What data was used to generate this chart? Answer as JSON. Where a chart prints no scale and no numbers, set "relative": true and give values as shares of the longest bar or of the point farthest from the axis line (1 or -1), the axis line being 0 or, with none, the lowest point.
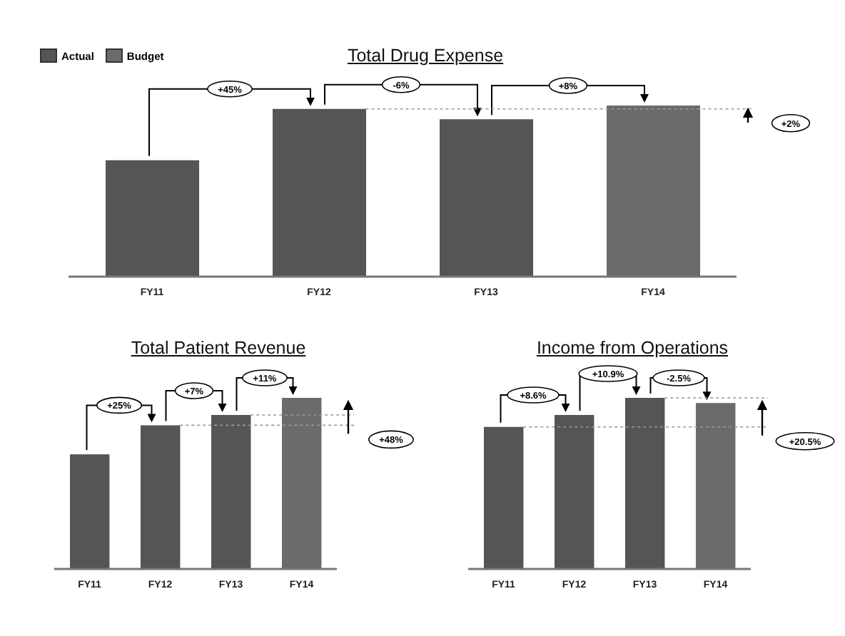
{
  "chart_data": [
    {
      "type": "bar",
      "title": "Total Drug Expense",
      "relative": true,
      "stacked": true,
      "legend": "top left",
      "categories": [
        "FY11",
        "FY12",
        "FY13",
        "FY14"
      ],
      "series": [
        {
          "name": "Actual",
          "color": "#555555",
          "values": [
            0.68,
            0.98,
            0.92,
            null
          ]
        },
        {
          "name": "Budget",
          "color": "#6b6b6b",
          "values": [
            null,
            null,
            null,
            1
          ]
        }
      ],
      "ref_lines": [
        {
          "axis": "y",
          "value": 0.98,
          "color": "#999999",
          "line_style": "dotted"
        }
      ],
      "annotations": [
        "+45%",
        "-6%",
        "+8%",
        "+2%"
      ]
    },
    {
      "type": "bar",
      "title": "Total Patient Revenue",
      "relative": true,
      "stacked": true,
      "categories": [
        "FY11",
        "FY12",
        "FY13",
        "FY14"
      ],
      "series": [
        {
          "color": "#555555",
          "values": [
            0.67,
            0.84,
            0.9,
            null
          ]
        },
        {
          "color": "#6b6b6b",
          "values": [
            null,
            null,
            null,
            1
          ]
        }
      ],
      "ref_lines": [
        {
          "axis": "y",
          "value": 0.84,
          "color": "#999999",
          "line_style": "dotted"
        },
        {
          "axis": "y",
          "value": 0.9,
          "color": "#999999",
          "line_style": "dotted"
        }
      ],
      "annotations": [
        "+25%",
        "+7%",
        "+11%",
        "+48%"
      ]
    },
    {
      "type": "bar",
      "title": "Income from Operations",
      "relative": true,
      "stacked": true,
      "categories": [
        "FY11",
        "FY12",
        "FY13",
        "FY14"
      ],
      "series": [
        {
          "color": "#555555",
          "values": [
            0.83,
            0.9,
            1,
            null
          ]
        },
        {
          "color": "#6b6b6b",
          "values": [
            null,
            null,
            null,
            0.97
          ]
        }
      ],
      "ref_lines": [
        {
          "axis": "y",
          "value": 0.83,
          "color": "#999999",
          "line_style": "dotted"
        },
        {
          "axis": "y",
          "value": 1,
          "color": "#999999",
          "line_style": "dotted"
        }
      ],
      "annotations": [
        "+8.6%",
        "+10.9%",
        "-2.5%",
        "+20.5%"
      ]
    }
  ]
}
